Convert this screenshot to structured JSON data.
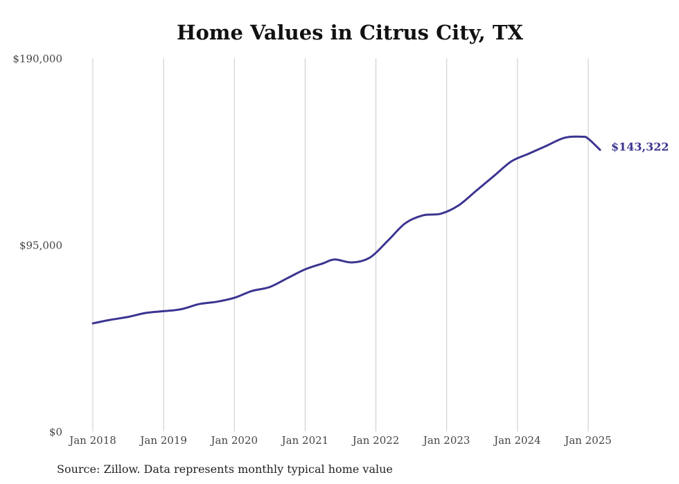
{
  "chart_data": {
    "type": "line",
    "title": "Home Values in Citrus City, TX",
    "xlabel": "",
    "ylabel": "",
    "ylim": [
      0,
      190000
    ],
    "y_ticks": [
      {
        "value": 0,
        "label": "$0"
      },
      {
        "value": 95000,
        "label": "$95,000"
      },
      {
        "value": 190000,
        "label": "$190,000"
      }
    ],
    "x_ticks": [
      {
        "date": "2018-01",
        "label": "Jan 2018"
      },
      {
        "date": "2019-01",
        "label": "Jan 2019"
      },
      {
        "date": "2020-01",
        "label": "Jan 2020"
      },
      {
        "date": "2021-01",
        "label": "Jan 2021"
      },
      {
        "date": "2022-01",
        "label": "Jan 2022"
      },
      {
        "date": "2023-01",
        "label": "Jan 2023"
      },
      {
        "date": "2024-01",
        "label": "Jan 2024"
      },
      {
        "date": "2025-01",
        "label": "Jan 2025"
      }
    ],
    "grid": "vertical lines at each January",
    "legend": "none",
    "series": [
      {
        "color": "#3b3490",
        "end_label": "$143,322",
        "points": [
          {
            "date": "2018-01",
            "value": 55000
          },
          {
            "date": "2018-04",
            "value": 56800
          },
          {
            "date": "2018-07",
            "value": 58300
          },
          {
            "date": "2018-10",
            "value": 60300
          },
          {
            "date": "2019-01",
            "value": 61200
          },
          {
            "date": "2019-04",
            "value": 62200
          },
          {
            "date": "2019-07",
            "value": 64800
          },
          {
            "date": "2019-10",
            "value": 66000
          },
          {
            "date": "2020-01",
            "value": 68000
          },
          {
            "date": "2020-04",
            "value": 71500
          },
          {
            "date": "2020-07",
            "value": 73500
          },
          {
            "date": "2020-10",
            "value": 78000
          },
          {
            "date": "2021-01",
            "value": 82500
          },
          {
            "date": "2021-04",
            "value": 85500
          },
          {
            "date": "2021-06",
            "value": 87500
          },
          {
            "date": "2021-09",
            "value": 86000
          },
          {
            "date": "2021-12",
            "value": 88500
          },
          {
            "date": "2022-03",
            "value": 97000
          },
          {
            "date": "2022-06",
            "value": 106000
          },
          {
            "date": "2022-09",
            "value": 110000
          },
          {
            "date": "2022-12",
            "value": 110800
          },
          {
            "date": "2023-03",
            "value": 115000
          },
          {
            "date": "2023-06",
            "value": 122500
          },
          {
            "date": "2023-09",
            "value": 130000
          },
          {
            "date": "2023-12",
            "value": 137500
          },
          {
            "date": "2024-03",
            "value": 141500
          },
          {
            "date": "2024-06",
            "value": 145500
          },
          {
            "date": "2024-09",
            "value": 149500
          },
          {
            "date": "2024-12",
            "value": 150000
          },
          {
            "date": "2025-01",
            "value": 149000
          },
          {
            "date": "2025-03",
            "value": 143322
          }
        ]
      }
    ]
  },
  "source": "Source: Zillow. Data represents monthly typical home value"
}
